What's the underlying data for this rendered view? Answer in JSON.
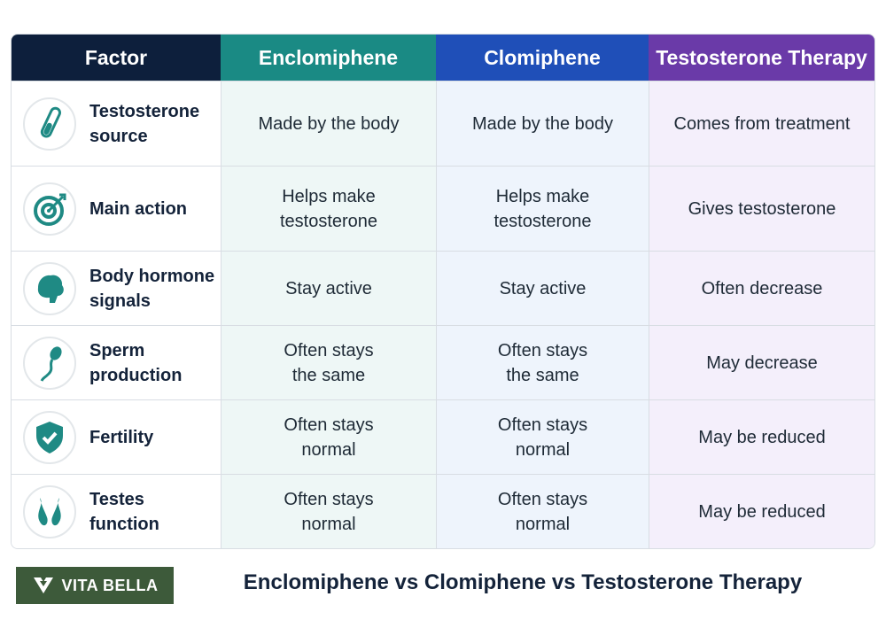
{
  "table": {
    "headers": [
      "Factor",
      "Enclomiphene",
      "Clomiphene",
      "Testosterone Therapy"
    ],
    "rows": [
      {
        "factor": [
          "Testosterone",
          "source"
        ],
        "cells": [
          [
            "Made by the body"
          ],
          [
            "Made by the body"
          ],
          [
            "Comes from treatment"
          ]
        ]
      },
      {
        "factor": [
          "Main action"
        ],
        "cells": [
          [
            "Helps make",
            "testosterone"
          ],
          [
            "Helps make",
            "testosterone"
          ],
          [
            "Gives testosterone"
          ]
        ]
      },
      {
        "factor": [
          "Body hormone",
          "signals"
        ],
        "cells": [
          [
            "Stay active"
          ],
          [
            "Stay active"
          ],
          [
            "Often decrease"
          ]
        ]
      },
      {
        "factor": [
          "Sperm",
          "production"
        ],
        "cells": [
          [
            "Often stays",
            "the same"
          ],
          [
            "Often stays",
            "the same"
          ],
          [
            "May decrease"
          ]
        ]
      },
      {
        "factor": [
          "Fertility"
        ],
        "cells": [
          [
            "Often stays",
            "normal"
          ],
          [
            "Often stays",
            "normal"
          ],
          [
            "May be reduced"
          ]
        ]
      },
      {
        "factor": [
          "Testes",
          "function"
        ],
        "cells": [
          [
            "Often stays",
            "normal"
          ],
          [
            "Often stays",
            "normal"
          ],
          [
            "May be reduced"
          ]
        ]
      }
    ]
  },
  "footer": {
    "brand": "VITA BELLA",
    "title": "Enclomiphene vs Clomiphene vs Testosterone Therapy"
  }
}
